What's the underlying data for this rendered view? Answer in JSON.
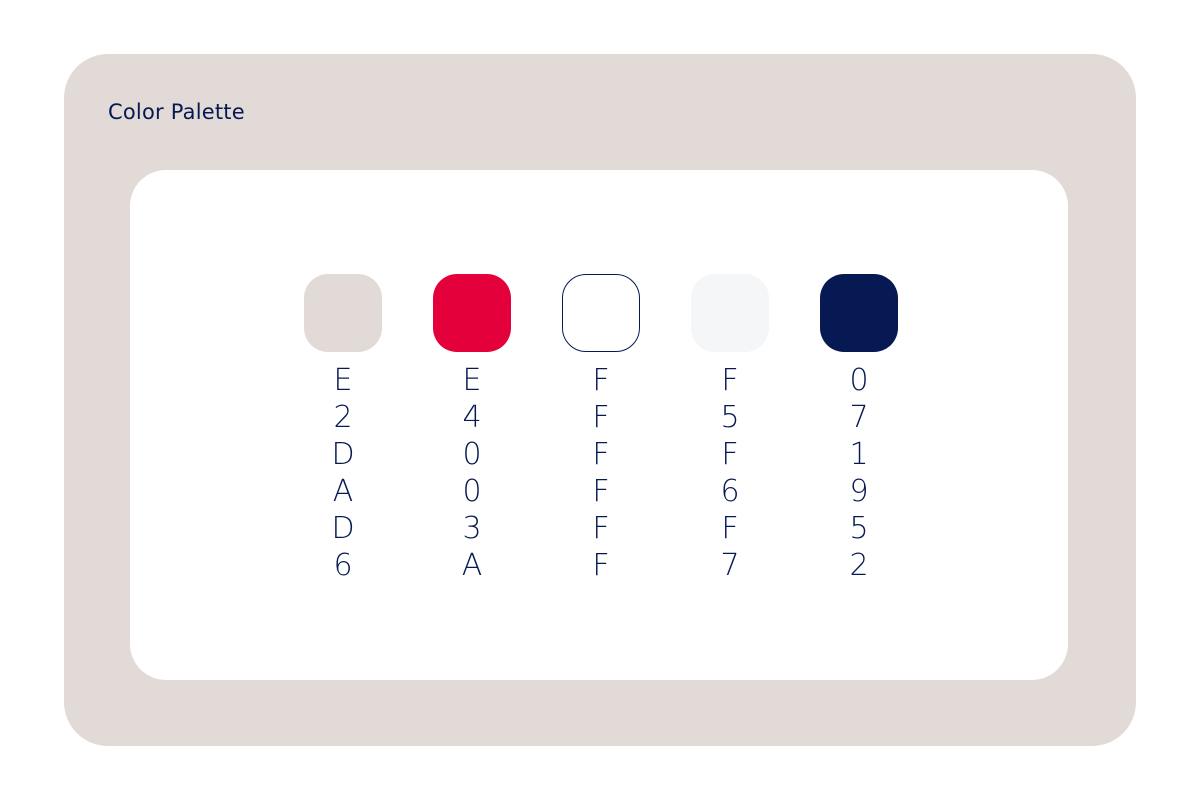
{
  "title": "Color Palette",
  "palette": [
    {
      "hex": "E2DAD6",
      "color": "#E2DAD6",
      "outlined": false
    },
    {
      "hex": "E4003A",
      "color": "#E4003A",
      "outlined": false
    },
    {
      "hex": "FFFFFF",
      "color": "#FFFFFF",
      "outlined": true
    },
    {
      "hex": "F5F6F7",
      "color": "#F5F6F7",
      "outlined": false
    },
    {
      "hex": "071952",
      "color": "#071952",
      "outlined": false
    }
  ],
  "colors": {
    "background": "#E2DAD6",
    "card": "#FFFFFF",
    "text": "#071952"
  }
}
